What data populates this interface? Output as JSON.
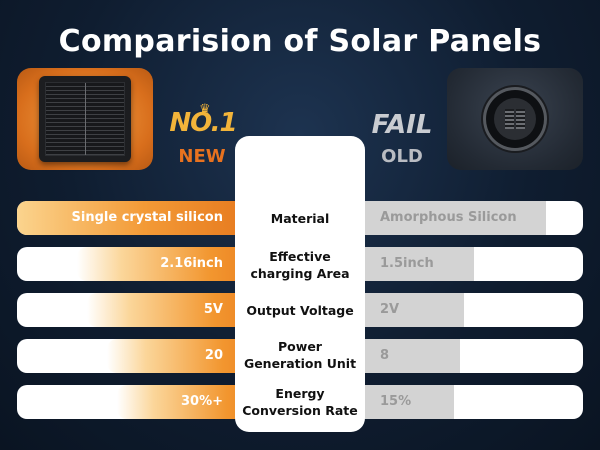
{
  "title": "Comparision of Solar Panels",
  "new_badge": {
    "rank": "NO.1",
    "label": "NEW"
  },
  "old_badge": {
    "status": "FAIL",
    "label": "OLD"
  },
  "rows": [
    {
      "label": "Material",
      "new_value": "Single crystal silicon",
      "old_value": "Amorphous Silicon"
    },
    {
      "label": "Effective charging Area",
      "new_value": "2.16inch",
      "old_value": "1.5inch"
    },
    {
      "label": "Output Voltage",
      "new_value": "5V",
      "old_value": "2V"
    },
    {
      "label": "Power Generation Unit",
      "new_value": "20",
      "old_value": "8"
    },
    {
      "label": "Energy Conversion Rate",
      "new_value": "30%+",
      "old_value": "15%"
    }
  ],
  "colors": {
    "accent": "#e8721f",
    "gold": "#f2b43a",
    "old_bar": "#d3d3d3"
  },
  "icons": {
    "new_panel": "square-solar-panel-icon",
    "old_panel": "round-solar-panel-icon",
    "crown": "crown-icon"
  }
}
